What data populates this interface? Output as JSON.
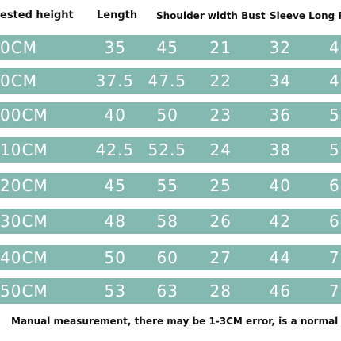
{
  "header": [
    "ested height",
    "Length",
    "Shoulder width Bust",
    "Sleeve Long Pa"
  ],
  "rows": [
    [
      "0CM",
      "35",
      "45",
      "21",
      "32",
      "4"
    ],
    [
      "0CM",
      "37.5",
      "47.5",
      "22",
      "34",
      "4"
    ],
    [
      "00CM",
      "40",
      "50",
      "23",
      "36",
      "5"
    ],
    [
      "10CM",
      "42.5",
      "52.5",
      "24",
      "38",
      "5"
    ],
    [
      "20CM",
      "45",
      "55",
      "25",
      "40",
      "6"
    ],
    [
      "30CM",
      "48",
      "58",
      "26",
      "42",
      "6"
    ],
    [
      "40CM",
      "50",
      "60",
      "27",
      "44",
      "7"
    ],
    [
      "50CM",
      "53",
      "63",
      "28",
      "46",
      "7"
    ]
  ],
  "footnote": "Manual measurement, there may be 1-3CM error, is a normal"
}
